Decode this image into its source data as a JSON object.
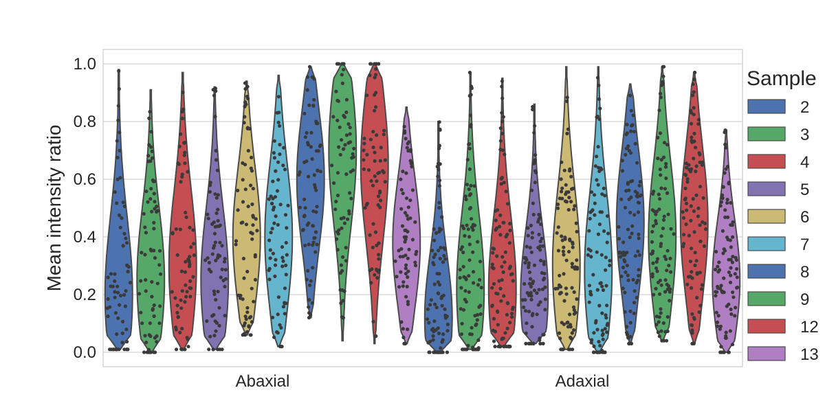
{
  "chart_data": {
    "type": "violin",
    "ylabel": "Mean intensity ratio",
    "xlabel": "",
    "ylim": [
      -0.05,
      1.05
    ],
    "yticks": [
      "0.0",
      "0.2",
      "0.4",
      "0.6",
      "0.8",
      "1.0"
    ],
    "categories": [
      "Abaxial",
      "Adaxial"
    ],
    "grid": "horizontal",
    "legend": {
      "title": "Sample",
      "placement": "right"
    },
    "series": [
      {
        "name": "2",
        "color": "#4c72b0",
        "ranges": [
          [
            0.01,
            0.98
          ],
          [
            0.0,
            0.8
          ]
        ],
        "medians": [
          0.2,
          0.12
        ]
      },
      {
        "name": "3",
        "color": "#55a868",
        "ranges": [
          [
            0.0,
            0.91
          ],
          [
            0.01,
            0.97
          ]
        ],
        "medians": [
          0.25,
          0.22
        ]
      },
      {
        "name": "4",
        "color": "#c44e52",
        "ranges": [
          [
            0.01,
            0.97
          ],
          [
            0.02,
            0.95
          ]
        ],
        "medians": [
          0.3,
          0.22
        ]
      },
      {
        "name": "5",
        "color": "#8172b2",
        "ranges": [
          [
            0.01,
            0.92
          ],
          [
            0.03,
            0.86
          ]
        ],
        "medians": [
          0.25,
          0.2
        ]
      },
      {
        "name": "6",
        "color": "#ccb974",
        "ranges": [
          [
            0.06,
            0.94
          ],
          [
            0.01,
            0.99
          ]
        ],
        "medians": [
          0.4,
          0.3
        ]
      },
      {
        "name": "7",
        "color": "#64b5cd",
        "ranges": [
          [
            0.02,
            0.96
          ],
          [
            0.0,
            0.99
          ]
        ],
        "medians": [
          0.4,
          0.28
        ]
      },
      {
        "name": "8",
        "color": "#4c72b0",
        "ranges": [
          [
            0.12,
            0.99
          ],
          [
            0.03,
            0.93
          ]
        ],
        "medians": [
          0.6,
          0.45
        ]
      },
      {
        "name": "9",
        "color": "#55a868",
        "ranges": [
          [
            0.04,
            1.0
          ],
          [
            0.04,
            0.99
          ]
        ],
        "medians": [
          0.7,
          0.4
        ]
      },
      {
        "name": "12",
        "color": "#c44e52",
        "ranges": [
          [
            0.03,
            1.0
          ],
          [
            0.03,
            0.97
          ]
        ],
        "medians": [
          0.65,
          0.45
        ]
      },
      {
        "name": "13",
        "color": "#b07fc3",
        "ranges": [
          [
            0.03,
            0.85
          ],
          [
            0.0,
            0.77
          ]
        ],
        "medians": [
          0.38,
          0.25
        ]
      }
    ]
  }
}
